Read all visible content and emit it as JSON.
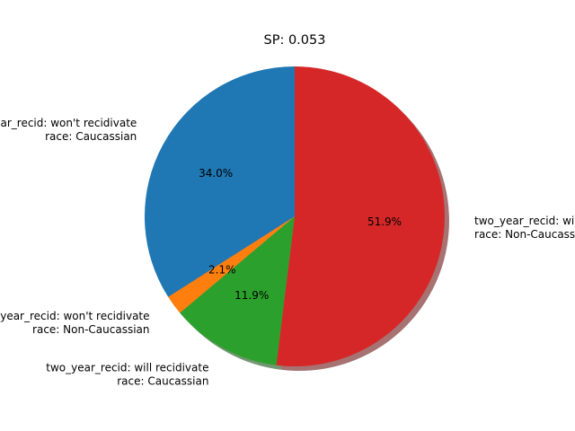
{
  "chart_data": {
    "type": "pie",
    "title": "SP: 0.053",
    "shadow": true,
    "start_angle_deg": 90,
    "direction": "counterclockwise",
    "slices": [
      {
        "label_lines": [
          "two_year_recid: won't recidivate",
          "race: Caucassian"
        ],
        "value": 34.0,
        "pct_label": "34.0%",
        "color": "#1f77b4"
      },
      {
        "label_lines": [
          "two_year_recid: won't recidivate",
          "race: Non-Caucassian"
        ],
        "value": 2.1,
        "pct_label": "2.1%",
        "color": "#ff7f0e"
      },
      {
        "label_lines": [
          "two_year_recid: will recidivate",
          "race: Caucassian"
        ],
        "value": 11.9,
        "pct_label": "11.9%",
        "color": "#2ca02c"
      },
      {
        "label_lines": [
          "two_year_recid: will recidivate",
          "race: Non-Caucassian"
        ],
        "value": 51.9,
        "pct_label": "51.9%",
        "color": "#d62728"
      }
    ]
  }
}
